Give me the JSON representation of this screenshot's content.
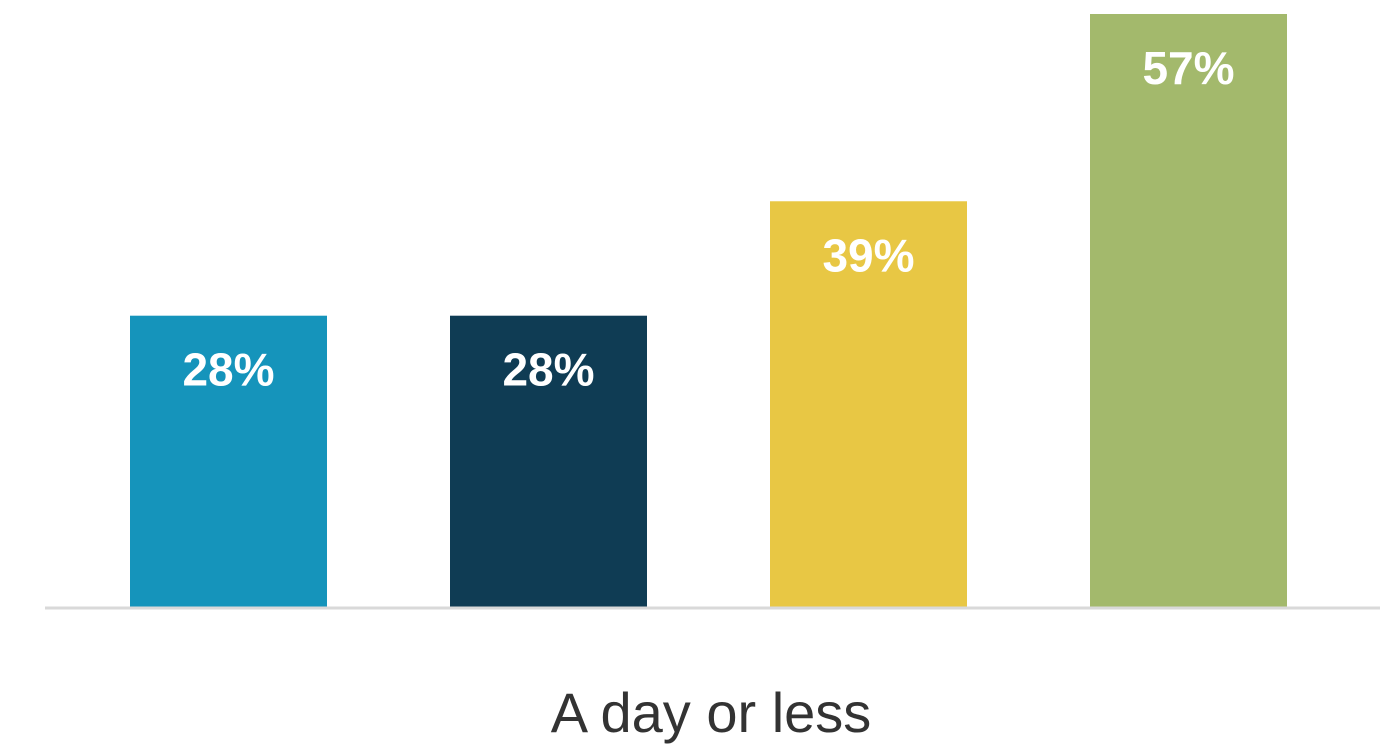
{
  "chart_data": {
    "type": "bar",
    "categories": [
      "A day or less"
    ],
    "series": [
      {
        "values": [
          28
        ],
        "color": "#1594bb"
      },
      {
        "values": [
          28
        ],
        "color": "#0f3c54"
      },
      {
        "values": [
          39
        ],
        "color": "#e8c744"
      },
      {
        "values": [
          57
        ],
        "color": "#a3b96c"
      }
    ],
    "data_labels": [
      "28%",
      "28%",
      "39%",
      "57%"
    ],
    "ylim": [
      0,
      57
    ],
    "grid": false,
    "legend": "none",
    "axis_color": "#d9d9d9"
  }
}
